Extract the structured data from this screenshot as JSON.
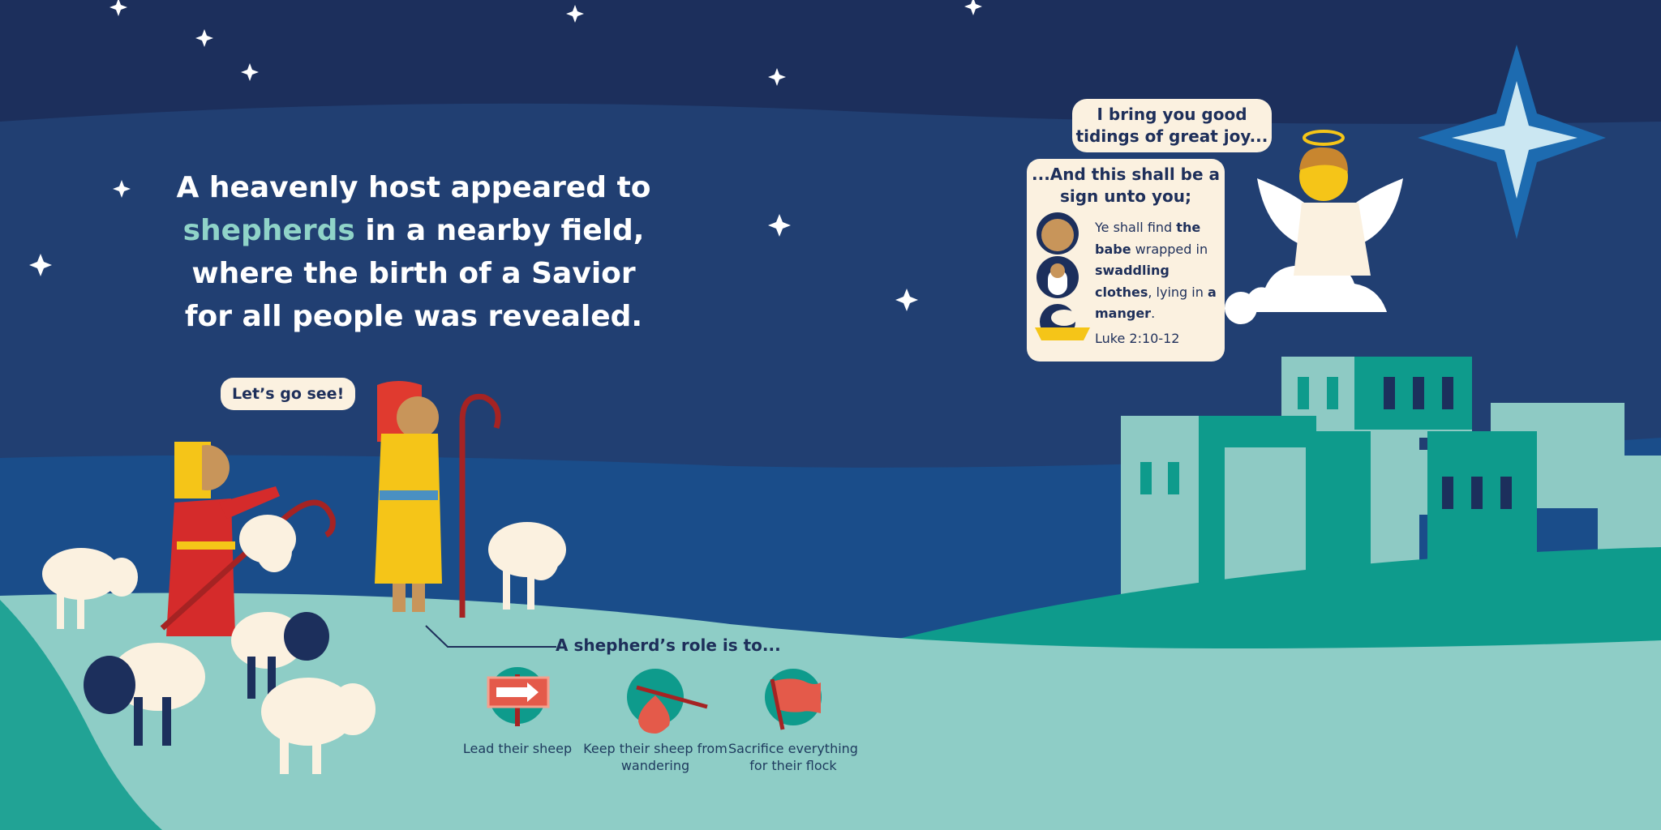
{
  "headline": {
    "line1": "A heavenly host appeared to",
    "highlight": "shepherds",
    "line2_rest": " in a nearby field,",
    "line3": "where the birth of a Savior",
    "line4": "for all people was revealed."
  },
  "shepherd_bubble": "Let’s go see!",
  "angel_bubble": "I bring you good tidings of great joy...",
  "sign_bubble": {
    "title": "...And this shall be a sign unto you;",
    "verse": {
      "t1": "Ye shall find ",
      "b1": "the babe",
      "t2": " wrapped in ",
      "b2": "swaddling clothes",
      "t3": ", lying in ",
      "b3": "a manger",
      "t4": "."
    },
    "reference": "Luke 2:10-12"
  },
  "roles": {
    "title": "A shepherd’s role is to...",
    "items": [
      {
        "label": "Lead their sheep",
        "icon": "sign-arrow-icon"
      },
      {
        "label": "Keep their sheep from wandering",
        "icon": "bindle-icon"
      },
      {
        "label": "Sacrifice everything for their flock",
        "icon": "flag-icon"
      }
    ]
  },
  "colors": {
    "sky": "#1c2f5c",
    "teal": "#0e9b8c",
    "light_teal": "#8ecdc6",
    "red": "#e45a4a",
    "cream": "#fbf1e0"
  }
}
